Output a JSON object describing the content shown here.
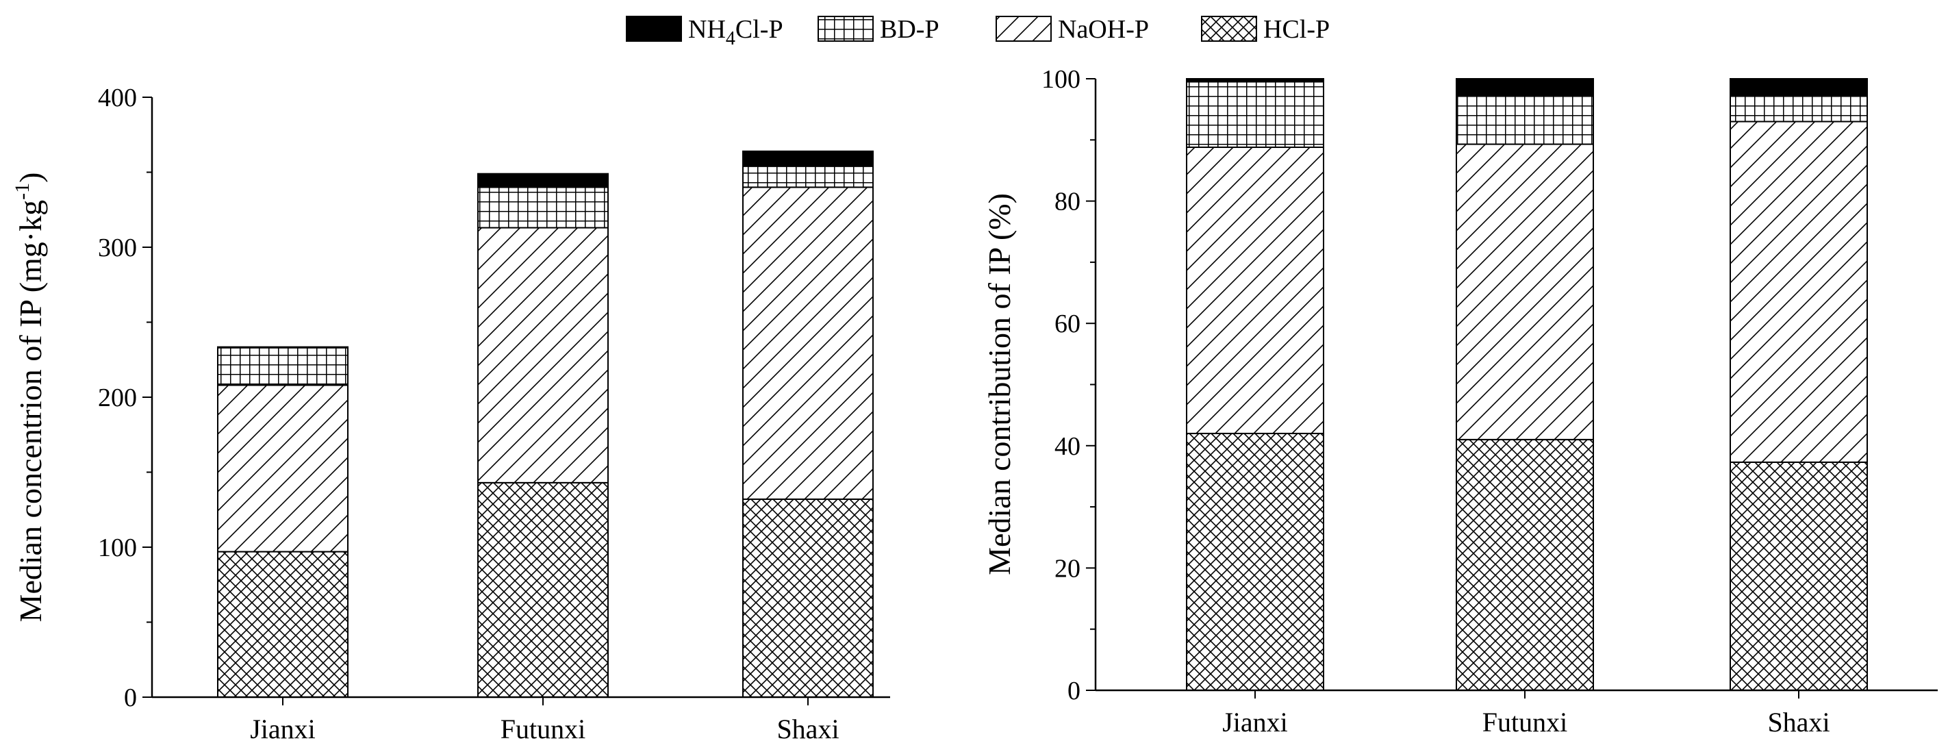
{
  "legend": {
    "items": [
      {
        "label": "NH4Cl-P",
        "pattern": "solid"
      },
      {
        "label": "BD-P",
        "pattern": "grid"
      },
      {
        "label": "NaOH-P",
        "pattern": "diagonal"
      },
      {
        "label": "HCl-P",
        "pattern": "crosshatch"
      }
    ],
    "placement": "top-center"
  },
  "colors": {
    "ink": "#000000",
    "background": "#ffffff"
  },
  "chart_data": [
    {
      "type": "bar",
      "stacked": true,
      "categories": [
        "Jianxi",
        "Futunxi",
        "Shaxi"
      ],
      "ylabel": "Median concentrion of IP (mg·kg",
      "ylabel_superscript": "-1",
      "ylabel_suffix": ")",
      "ylim": [
        0,
        400
      ],
      "yticks": [
        0,
        100,
        200,
        300,
        400
      ],
      "grid": false,
      "series": [
        {
          "name": "HCl-P",
          "values": [
            97,
            143,
            132
          ]
        },
        {
          "name": "NaOH-P",
          "values": [
            111,
            170,
            208
          ]
        },
        {
          "name": "BD-P",
          "values": [
            25,
            27,
            14
          ]
        },
        {
          "name": "NH4Cl-P",
          "values": [
            0.5,
            9,
            10
          ]
        }
      ]
    },
    {
      "type": "bar",
      "stacked": true,
      "categories": [
        "Jianxi",
        "Futunxi",
        "Shaxi"
      ],
      "ylabel": "Median contribution of IP (%)",
      "ylim": [
        0,
        100
      ],
      "yticks": [
        0,
        20,
        40,
        60,
        80,
        100
      ],
      "grid": false,
      "series": [
        {
          "name": "HCl-P",
          "values": [
            42,
            41,
            37.3
          ]
        },
        {
          "name": "NaOH-P",
          "values": [
            46.8,
            48.3,
            55.7
          ]
        },
        {
          "name": "BD-P",
          "values": [
            10.7,
            8.0,
            4.2
          ]
        },
        {
          "name": "NH4Cl-P",
          "values": [
            0.5,
            2.7,
            2.8
          ]
        }
      ]
    }
  ]
}
